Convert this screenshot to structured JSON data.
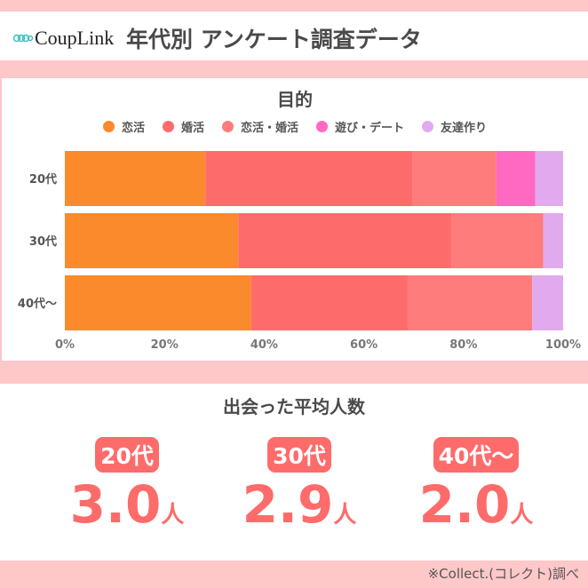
{
  "header": {
    "logo": "CoupLink",
    "title": "年代別 アンケート調査データ"
  },
  "chart_data": {
    "type": "bar",
    "orientation": "horizontal",
    "stacked": true,
    "title": "目的",
    "categories": [
      "20代",
      "30代",
      "40代〜"
    ],
    "series": [
      {
        "name": "恋活",
        "color": "#fa8a2c",
        "values": [
          28.2,
          34.8,
          37.4
        ]
      },
      {
        "name": "婚活",
        "color": "#fe6b6b",
        "values": [
          41.5,
          42.8,
          31.4
        ]
      },
      {
        "name": "恋活・婚活",
        "color": "#fe7c7b",
        "values": [
          16.9,
          18.4,
          25.0
        ]
      },
      {
        "name": "遊び・デート",
        "color": "#ff69c2",
        "values": [
          7.8,
          0,
          0
        ]
      },
      {
        "name": "友達作り",
        "color": "#e1aaee",
        "values": [
          5.6,
          4.0,
          6.2
        ]
      }
    ],
    "xlim": [
      0,
      100
    ],
    "xticks": [
      "0%",
      "20%",
      "40%",
      "60%",
      "80%",
      "100%"
    ],
    "legend": "top"
  },
  "stats": {
    "title": "出会った平均人数",
    "unit": "人",
    "items": [
      {
        "label": "20代",
        "value": "3.0"
      },
      {
        "label": "30代",
        "value": "2.9"
      },
      {
        "label": "40代〜",
        "value": "2.0"
      }
    ]
  },
  "footer": "※Collect.(コレクト)調べ"
}
